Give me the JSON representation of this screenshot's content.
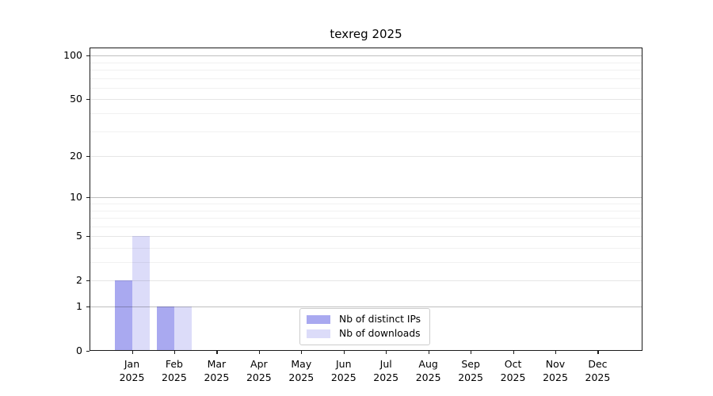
{
  "chart_data": {
    "type": "bar",
    "title": "texreg 2025",
    "categories": [
      "Jan",
      "Feb",
      "Mar",
      "Apr",
      "May",
      "Jun",
      "Jul",
      "Aug",
      "Sep",
      "Oct",
      "Nov",
      "Dec"
    ],
    "category_year": "2025",
    "series": [
      {
        "name": "Nb of distinct IPs",
        "color": "#a9a9f0",
        "values": [
          2,
          1,
          0,
          0,
          0,
          0,
          0,
          0,
          0,
          0,
          0,
          0
        ]
      },
      {
        "name": "Nb of downloads",
        "color": "#dcdcf9",
        "values": [
          5,
          1,
          0,
          0,
          0,
          0,
          0,
          0,
          0,
          0,
          0,
          0
        ]
      }
    ],
    "yaxis": {
      "scale": "log1p",
      "tick_values": [
        0,
        1,
        2,
        5,
        10,
        20,
        50,
        100
      ],
      "tick_labels": [
        "0",
        "1",
        "2",
        "5",
        "10",
        "20",
        "50",
        "100"
      ],
      "top_value": 115
    },
    "grid": {
      "on": true,
      "strong_values": [
        1,
        10,
        100
      ],
      "medium_values": [
        2,
        5,
        20,
        50
      ],
      "minor_values": [
        3,
        4,
        6,
        7,
        8,
        9,
        30,
        40,
        60,
        70,
        80,
        90
      ]
    },
    "legend_position": "lower center"
  }
}
